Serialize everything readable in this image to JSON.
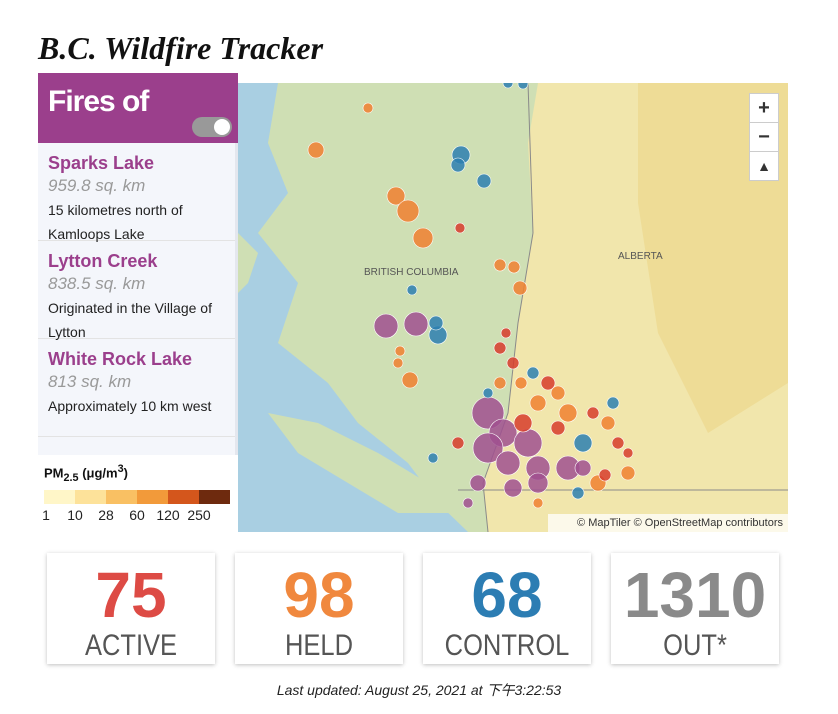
{
  "header": {
    "title": "B.C. Wildfire Tracker"
  },
  "sidebar": {
    "heading": "Fires of",
    "fires": [
      {
        "name": "Sparks Lake",
        "area": "959.8 sq. km",
        "description": "15 kilometres north of Kamloops Lake"
      },
      {
        "name": "Lytton Creek",
        "area": "838.5 sq. km",
        "description": "Originated in the Village of Lytton"
      },
      {
        "name": "White Rock Lake",
        "area": "813 sq. km",
        "description": "Approximately 10 km west"
      }
    ]
  },
  "legend": {
    "title": "PM",
    "subscript": "2.5",
    "unit": "(μg/m",
    "superscript": "3",
    "close": ")",
    "ticks": [
      1,
      10,
      28,
      60,
      120,
      250
    ],
    "colors": [
      "#fff6c8",
      "#fde29a",
      "#f9c063",
      "#f29a3a",
      "#d4561c",
      "#6e2a0e"
    ]
  },
  "map": {
    "labels": [
      "BRITISH COLUMBIA",
      "ALBERTA"
    ],
    "attribution": "© MapTiler © OpenStreetMap contributors",
    "zoom_in": "+",
    "zoom_out": "−"
  },
  "stats": [
    {
      "value": "75",
      "label": "ACTIVE",
      "color": "#dd4b45"
    },
    {
      "value": "98",
      "label": "HELD",
      "color": "#f0883e"
    },
    {
      "value": "68",
      "label": "CONTROL",
      "color": "#2c7db3"
    },
    {
      "value": "1310",
      "label": "OUT*",
      "color": "#8a8a8a"
    }
  ],
  "footer": {
    "updated": "Last updated: August 25, 2021 at 下午3:22:53"
  }
}
